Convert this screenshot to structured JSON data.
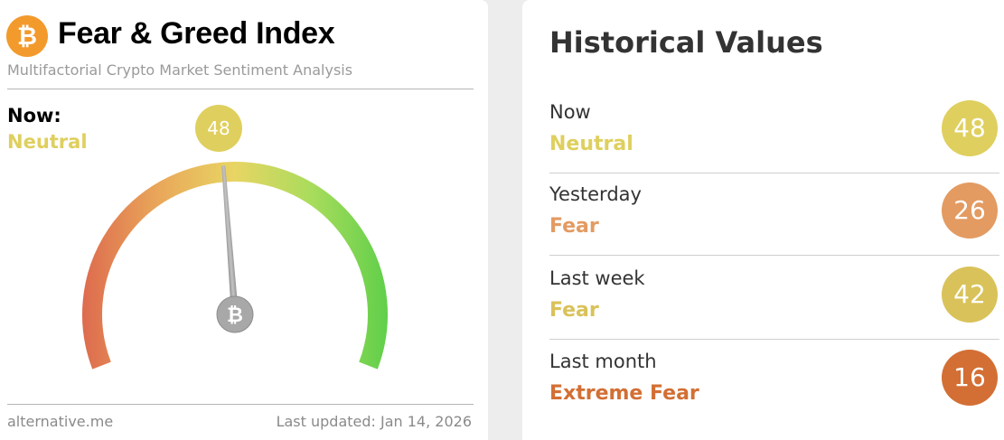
{
  "header": {
    "title": "Fear & Greed Index",
    "subtitle": "Multifactorial Crypto Market Sentiment Analysis",
    "logo_icon": "bitcoin-icon"
  },
  "now": {
    "label": "Now:",
    "classification": "Neutral",
    "value": "48",
    "color": "#dfcf5e"
  },
  "gauge": {
    "value": 48,
    "min": 0,
    "max": 100,
    "colors": [
      "#dd6a4e",
      "#e9a75a",
      "#e8d563",
      "#a9dc5c",
      "#5fcf4a"
    ]
  },
  "footer": {
    "source": "alternative.me",
    "last_updated": "Last updated: Jan 14, 2026"
  },
  "historical": {
    "title": "Historical Values",
    "rows": [
      {
        "label": "Now",
        "classification": "Neutral",
        "value": "48",
        "color": "#dfcf5e"
      },
      {
        "label": "Yesterday",
        "classification": "Fear",
        "value": "26",
        "color": "#e39b62"
      },
      {
        "label": "Last week",
        "classification": "Fear",
        "value": "42",
        "color": "#d9c25a"
      },
      {
        "label": "Last month",
        "classification": "Extreme Fear",
        "value": "16",
        "color": "#d36f34"
      }
    ]
  }
}
